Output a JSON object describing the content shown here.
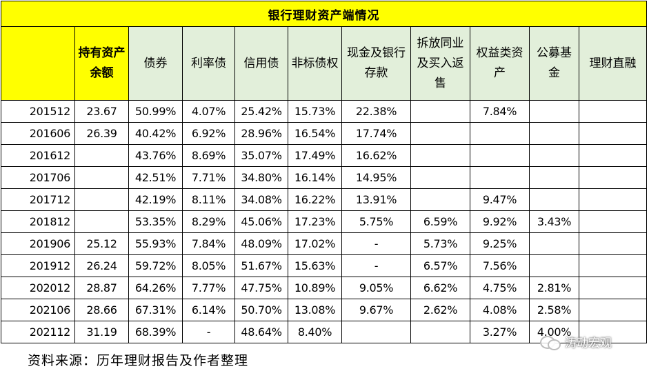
{
  "table": {
    "title": "银行理财资产端情况",
    "headers": [
      "",
      "持有资产余额",
      "债券",
      "利率债",
      "信用债",
      "非标债权",
      "现金及银行存款",
      "拆放同业及买入返售",
      "权益类资产",
      "公募基金",
      "理财直融"
    ],
    "rows": [
      [
        "201512",
        "23.67",
        "50.99%",
        "4.07%",
        "25.42%",
        "15.73%",
        "22.38%",
        "",
        "7.84%",
        "",
        ""
      ],
      [
        "201606",
        "26.39",
        "40.42%",
        "6.92%",
        "28.96%",
        "16.54%",
        "17.74%",
        "",
        "",
        "",
        ""
      ],
      [
        "201612",
        "",
        "43.76%",
        "8.69%",
        "35.07%",
        "17.49%",
        "16.62%",
        "",
        "",
        "",
        ""
      ],
      [
        "201706",
        "",
        "42.51%",
        "7.71%",
        "34.80%",
        "16.14%",
        "14.95%",
        "",
        "",
        "",
        ""
      ],
      [
        "201712",
        "",
        "42.19%",
        "8.11%",
        "34.08%",
        "16.22%",
        "13.91%",
        "",
        "9.47%",
        "",
        ""
      ],
      [
        "201812",
        "",
        "53.35%",
        "8.29%",
        "45.06%",
        "17.23%",
        "5.75%",
        "6.59%",
        "9.92%",
        "3.43%",
        ""
      ],
      [
        "201906",
        "25.12",
        "55.93%",
        "7.84%",
        "48.09%",
        "17.02%",
        "-",
        "5.73%",
        "9.25%",
        "",
        ""
      ],
      [
        "201912",
        "26.24",
        "59.72%",
        "8.05%",
        "51.67%",
        "15.63%",
        "-",
        "6.57%",
        "7.56%",
        "",
        ""
      ],
      [
        "202012",
        "28.87",
        "64.26%",
        "7.77%",
        "47.75%",
        "10.89%",
        "9.05%",
        "6.62%",
        "4.75%",
        "2.81%",
        ""
      ],
      [
        "202106",
        "28.66",
        "67.31%",
        "6.14%",
        "50.70%",
        "13.08%",
        "9.67%",
        "2.62%",
        "4.08%",
        "2.58%",
        ""
      ],
      [
        "202112",
        "31.19",
        "68.39%",
        "-",
        "48.64%",
        "8.40%",
        "",
        "",
        "3.27%",
        "4.00%",
        ""
      ]
    ]
  },
  "source_note": "资料来源：历年理财报告及作者整理",
  "watermark": {
    "text": "涛动宏观",
    "icon": "wechat-icon"
  },
  "colors": {
    "header_yellow": "#ffff00",
    "header_green": "#e2efda"
  }
}
